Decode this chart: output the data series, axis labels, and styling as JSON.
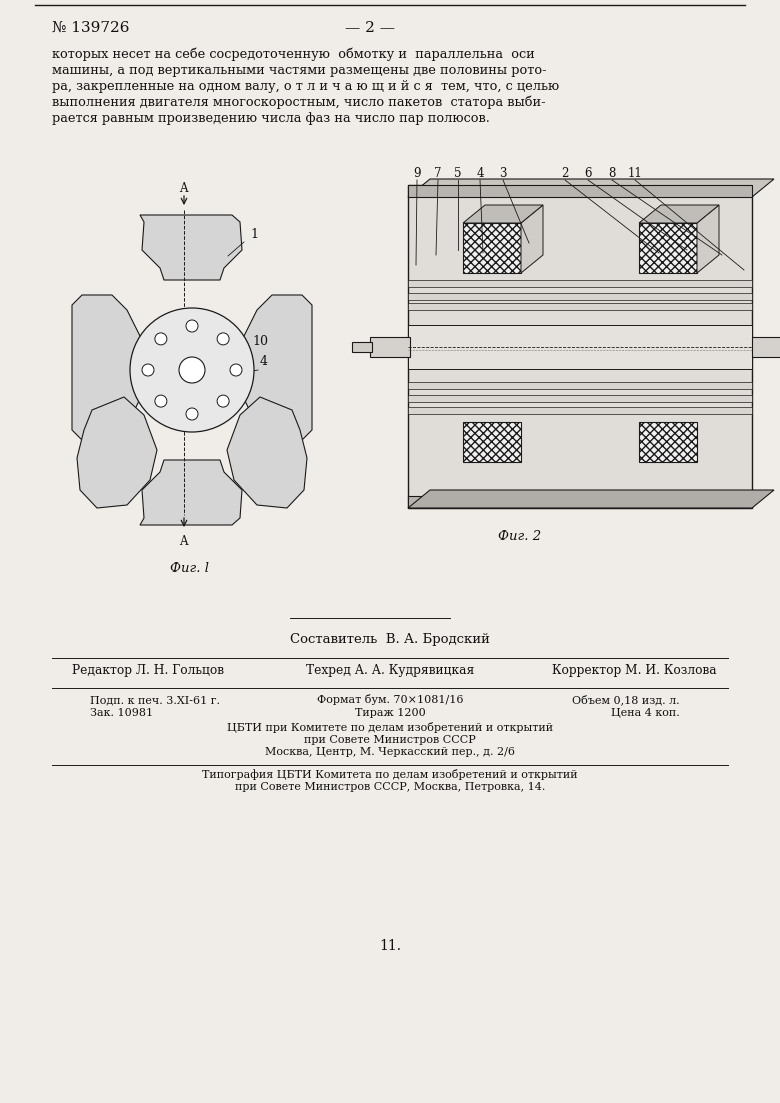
{
  "bg_color": "#f0ede8",
  "patent_number": "№ 139726",
  "page_number": "— 2 —",
  "body_line1": "которых несет на себе сосредоточенную  обмотку и  параллельна  оси",
  "body_line2": "машины, а под вертикальными частями размещены две половины рото-",
  "body_line3": "ра, закрепленные на одном валу, о т л и ч а ю щ и й с я  тем, что, с целью",
  "body_line4": "выполнения двигателя многоскоростным, число пакетов  статора выби-",
  "body_line5": "рается равным произведению числа фаз на число пар полюсов.",
  "fig1_caption": "Фиг. l",
  "fig2_caption": "Фиг. 2",
  "compiler_text": "Составитель  В. А. Бродский",
  "editor_text": "Редактор Л. Н. Гольцов",
  "techred_text": "Техред А. А. Кудрявицкая",
  "corrector_text": "Корректор М. И. Козлова",
  "podp_text": "Подп. к печ. 3.XI-61 г.",
  "zak_text": "Зак. 10981",
  "format_text": "Формат бум. 70×1081/16",
  "tirazh_text": "Тираж 1200",
  "obem_text": "Объем 0,18 изд. л.",
  "cena_text": "Цена 4 коп.",
  "cbti_text1": "ЦБТИ при Комитете по делам изобретений и открытий",
  "cbti_text2": "при Совете Министров СССР",
  "cbti_text3": "Москва, Центр, М. Черкасский пер., д. 2/6",
  "tipogr_text1": "Типография ЦБТИ Комитета по делам изобретений и открытий",
  "tipogr_text2": "при Совете Министров СССР, Москва, Петровка, 14.",
  "page_bottom": "11."
}
